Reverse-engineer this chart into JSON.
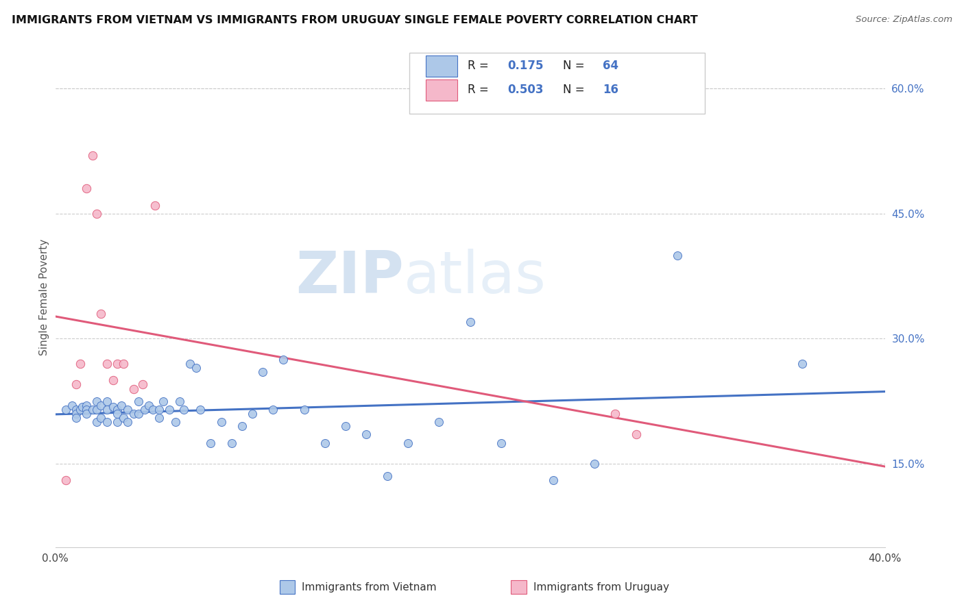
{
  "title": "IMMIGRANTS FROM VIETNAM VS IMMIGRANTS FROM URUGUAY SINGLE FEMALE POVERTY CORRELATION CHART",
  "source": "Source: ZipAtlas.com",
  "ylabel": "Single Female Poverty",
  "xlim": [
    0.0,
    0.4
  ],
  "ylim": [
    0.05,
    0.65
  ],
  "ytick_labels_right": [
    "15.0%",
    "30.0%",
    "45.0%",
    "60.0%"
  ],
  "ytick_positions_right": [
    0.15,
    0.3,
    0.45,
    0.6
  ],
  "R_vietnam": 0.175,
  "N_vietnam": 64,
  "R_uruguay": 0.503,
  "N_uruguay": 16,
  "color_vietnam": "#adc8e8",
  "color_uruguay": "#f5b8ca",
  "line_color_vietnam": "#4472c4",
  "line_color_uruguay": "#e05a7a",
  "watermark_zip": "ZIP",
  "watermark_atlas": "atlas",
  "legend_label_vietnam": "Immigrants from Vietnam",
  "legend_label_uruguay": "Immigrants from Uruguay",
  "vietnam_x": [
    0.005,
    0.008,
    0.01,
    0.01,
    0.01,
    0.012,
    0.013,
    0.015,
    0.015,
    0.015,
    0.018,
    0.02,
    0.02,
    0.02,
    0.022,
    0.022,
    0.025,
    0.025,
    0.025,
    0.028,
    0.03,
    0.03,
    0.03,
    0.032,
    0.033,
    0.035,
    0.035,
    0.038,
    0.04,
    0.04,
    0.043,
    0.045,
    0.047,
    0.05,
    0.05,
    0.052,
    0.055,
    0.058,
    0.06,
    0.062,
    0.065,
    0.068,
    0.07,
    0.075,
    0.08,
    0.085,
    0.09,
    0.095,
    0.1,
    0.105,
    0.11,
    0.12,
    0.13,
    0.14,
    0.15,
    0.16,
    0.17,
    0.185,
    0.2,
    0.215,
    0.24,
    0.26,
    0.3,
    0.36
  ],
  "vietnam_y": [
    0.215,
    0.22,
    0.215,
    0.21,
    0.205,
    0.215,
    0.218,
    0.22,
    0.215,
    0.21,
    0.215,
    0.225,
    0.215,
    0.2,
    0.22,
    0.205,
    0.225,
    0.215,
    0.2,
    0.218,
    0.215,
    0.21,
    0.2,
    0.22,
    0.205,
    0.215,
    0.2,
    0.21,
    0.225,
    0.21,
    0.215,
    0.22,
    0.215,
    0.215,
    0.205,
    0.225,
    0.215,
    0.2,
    0.225,
    0.215,
    0.27,
    0.265,
    0.215,
    0.175,
    0.2,
    0.175,
    0.195,
    0.21,
    0.26,
    0.215,
    0.275,
    0.215,
    0.175,
    0.195,
    0.185,
    0.135,
    0.175,
    0.2,
    0.32,
    0.175,
    0.13,
    0.15,
    0.4,
    0.27
  ],
  "uruguay_x": [
    0.005,
    0.01,
    0.012,
    0.015,
    0.018,
    0.02,
    0.022,
    0.025,
    0.028,
    0.03,
    0.033,
    0.038,
    0.042,
    0.048,
    0.27,
    0.28
  ],
  "uruguay_y": [
    0.13,
    0.245,
    0.27,
    0.48,
    0.52,
    0.45,
    0.33,
    0.27,
    0.25,
    0.27,
    0.27,
    0.24,
    0.245,
    0.46,
    0.21,
    0.185
  ]
}
